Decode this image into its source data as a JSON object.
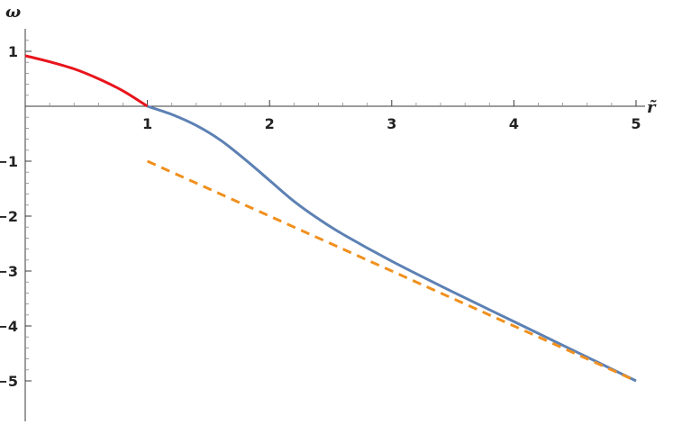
{
  "chart_data": {
    "type": "line",
    "xlabel": "r̃",
    "ylabel": "ω",
    "xlim": [
      0,
      5
    ],
    "ylim": [
      -5.1,
      1.3
    ],
    "xticks": [
      1,
      2,
      3,
      4,
      5
    ],
    "yticks": [
      1,
      -1,
      -2,
      -3,
      -4,
      -5
    ],
    "xtick_labels": [
      "1",
      "2",
      "3",
      "4",
      "5"
    ],
    "ytick_labels": [
      "1",
      "−1",
      "−2",
      "−3",
      "−4",
      "−5"
    ],
    "grid": false,
    "series": [
      {
        "style": "solid",
        "color": "#e8141b",
        "x": [
          0,
          0.2,
          0.4,
          0.6,
          0.8,
          1.0
        ],
        "y": [
          0.92,
          0.81,
          0.68,
          0.5,
          0.28,
          0.0
        ]
      },
      {
        "style": "solid",
        "color": "#5d81b4",
        "x": [
          1.0,
          1.2,
          1.4,
          1.6,
          1.8,
          2.0,
          2.2,
          2.4,
          2.6,
          3.0,
          3.5,
          4.0,
          4.5,
          5.0
        ],
        "y": [
          0.0,
          -0.15,
          -0.35,
          -0.62,
          -0.97,
          -1.35,
          -1.73,
          -2.05,
          -2.33,
          -2.82,
          -3.38,
          -3.92,
          -4.46,
          -5.0
        ]
      },
      {
        "style": "dashed",
        "color": "#f0901e",
        "x": [
          1.0,
          5.0
        ],
        "y": [
          -1.0,
          -5.0
        ]
      }
    ]
  }
}
